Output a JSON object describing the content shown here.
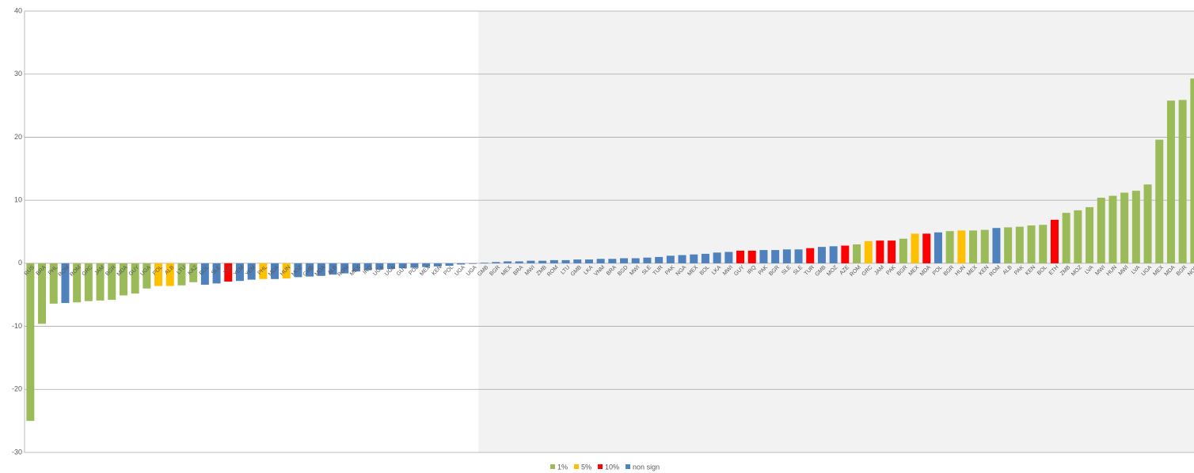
{
  "chart_data": {
    "type": "bar",
    "categories": [
      "RUS",
      "BRA",
      "PHL",
      "ROM",
      "ROM",
      "GRC",
      "JAM",
      "BGR",
      "MDA",
      "GUY",
      "UGA",
      "POL",
      "ALB",
      "LTU",
      "KAZ",
      "BOL",
      "SLE",
      "LVA",
      "YEM",
      "YEM",
      "PHL",
      "MDA",
      "HUN",
      "MOZ",
      "GMB",
      "MDA",
      "ALB",
      "ROM",
      "MEX",
      "IRQ",
      "UGA",
      "UGA",
      "GUY",
      "POL",
      "MEX",
      "KEN",
      "POL",
      "UGA",
      "UGA",
      "GMB",
      "BGR",
      "MEX",
      "BRA",
      "MWI",
      "ZMB",
      "ROM",
      "LTU",
      "GMB",
      "LKA",
      "VNM",
      "BRA",
      "BGD",
      "MWI",
      "SLE",
      "TUR",
      "PAK",
      "NGA",
      "MEX",
      "BOL",
      "LKA",
      "MWI",
      "GUY",
      "IRQ",
      "PAK",
      "BGR",
      "SLE",
      "SLE",
      "TUR",
      "GMB",
      "MOZ",
      "AZE",
      "ROM",
      "GRC",
      "JAM",
      "PAK",
      "BGR",
      "MEX",
      "MDA",
      "POL",
      "BGR",
      "HUN",
      "MEX",
      "KEN",
      "ROM",
      "ALB",
      "PAK",
      "KEN",
      "BOL",
      "ETH",
      "ZMB",
      "MOZ",
      "LVA",
      "MWI",
      "HUN",
      "MWI",
      "LVA",
      "UGA",
      "MEX",
      "MDA",
      "BGR",
      "NOR"
    ],
    "values": [
      -25,
      -9.6,
      -6.4,
      -6.3,
      -6.2,
      -6.0,
      -5.9,
      -5.8,
      -5.1,
      -4.8,
      -4.0,
      -3.6,
      -3.6,
      -3.5,
      -3.0,
      -3.4,
      -3.2,
      -2.9,
      -2.8,
      -2.6,
      -2.5,
      -2.5,
      -2.4,
      -2.2,
      -2.1,
      -2.0,
      -1.8,
      -1.6,
      -1.3,
      -1.1,
      -1.0,
      -0.9,
      -0.8,
      -0.7,
      -0.6,
      -0.5,
      -0.4,
      -0.2,
      -0.1,
      0.1,
      0.2,
      0.3,
      0.3,
      0.4,
      0.4,
      0.5,
      0.5,
      0.6,
      0.6,
      0.7,
      0.7,
      0.8,
      0.8,
      0.9,
      1.0,
      1.2,
      1.3,
      1.4,
      1.5,
      1.7,
      1.8,
      2.0,
      2.0,
      2.1,
      2.1,
      2.2,
      2.2,
      2.4,
      2.6,
      2.7,
      2.8,
      3.0,
      3.5,
      3.6,
      3.6,
      3.9,
      4.7,
      4.7,
      4.9,
      5.1,
      5.2,
      5.2,
      5.3,
      5.6,
      5.7,
      5.8,
      6.0,
      6.1,
      6.9,
      8.0,
      8.4,
      8.9,
      10.4,
      10.7,
      11.2,
      11.5,
      12.5,
      19.6,
      25.8,
      25.9,
      29.3
    ],
    "colors": [
      "#9bbb59",
      "#9bbb59",
      "#9bbb59",
      "#4f81bd",
      "#9bbb59",
      "#9bbb59",
      "#9bbb59",
      "#9bbb59",
      "#9bbb59",
      "#9bbb59",
      "#9bbb59",
      "#ffc000",
      "#ffc000",
      "#9bbb59",
      "#9bbb59",
      "#4f81bd",
      "#4f81bd",
      "#ff0000",
      "#4f81bd",
      "#4f81bd",
      "#ffc000",
      "#4f81bd",
      "#ffc000",
      "#4f81bd",
      "#4f81bd",
      "#4f81bd",
      "#4f81bd",
      "#4f81bd",
      "#4f81bd",
      "#4f81bd",
      "#4f81bd",
      "#4f81bd",
      "#4f81bd",
      "#4f81bd",
      "#4f81bd",
      "#4f81bd",
      "#4f81bd",
      "#4f81bd",
      "#4f81bd",
      "#4f81bd",
      "#4f81bd",
      "#4f81bd",
      "#4f81bd",
      "#4f81bd",
      "#4f81bd",
      "#4f81bd",
      "#4f81bd",
      "#4f81bd",
      "#4f81bd",
      "#4f81bd",
      "#4f81bd",
      "#4f81bd",
      "#4f81bd",
      "#4f81bd",
      "#4f81bd",
      "#4f81bd",
      "#4f81bd",
      "#4f81bd",
      "#4f81bd",
      "#4f81bd",
      "#4f81bd",
      "#ff0000",
      "#ff0000",
      "#4f81bd",
      "#4f81bd",
      "#4f81bd",
      "#4f81bd",
      "#ff0000",
      "#4f81bd",
      "#4f81bd",
      "#ff0000",
      "#9bbb59",
      "#ffc000",
      "#ff0000",
      "#ff0000",
      "#9bbb59",
      "#ffc000",
      "#ff0000",
      "#4f81bd",
      "#9bbb59",
      "#ffc000",
      "#9bbb59",
      "#9bbb59",
      "#4f81bd",
      "#9bbb59",
      "#9bbb59",
      "#9bbb59",
      "#9bbb59",
      "#ff0000",
      "#9bbb59",
      "#9bbb59",
      "#9bbb59",
      "#9bbb59",
      "#9bbb59",
      "#9bbb59",
      "#9bbb59",
      "#9bbb59",
      "#9bbb59",
      "#9bbb59",
      "#9bbb59",
      "#9bbb59"
    ],
    "legend": [
      {
        "name": "1%",
        "color": "#9bbb59"
      },
      {
        "name": "5%",
        "color": "#ffc000"
      },
      {
        "name": "10%",
        "color": "#ff0000"
      },
      {
        "name": "non sign",
        "color": "#4f81bd"
      }
    ],
    "ylim": [
      -30,
      40
    ],
    "yticks": [
      -30,
      -20,
      -10,
      0,
      10,
      20,
      30,
      40
    ],
    "grid": true
  }
}
